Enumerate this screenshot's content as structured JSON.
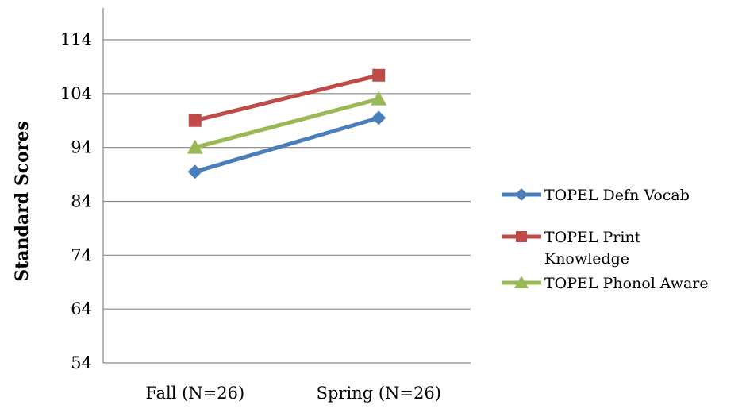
{
  "chart_data": {
    "type": "line",
    "title": "",
    "xlabel": "",
    "ylabel": "Standard Scores",
    "categories": [
      "Fall (N=26)",
      "Spring (N=26)"
    ],
    "ylim": [
      54,
      114
    ],
    "yticks": [
      "54",
      "64",
      "74",
      "84",
      "94",
      "104",
      "114"
    ],
    "grid": "horizontal",
    "legend": "right",
    "series": [
      {
        "name": "TOPEL Defn Vocab",
        "values": [
          89.5,
          99.5
        ],
        "color": "#4A7EBB",
        "marker": "diamond"
      },
      {
        "name": "TOPEL Print Knowledge",
        "legend_lines": [
          "TOPEL Print",
          "Knowledge"
        ],
        "values": [
          99,
          107.4
        ],
        "color": "#BE4B48",
        "marker": "square"
      },
      {
        "name": "TOPEL Phonol Aware",
        "values": [
          94,
          103
        ],
        "color": "#98B954",
        "marker": "triangle"
      }
    ]
  }
}
